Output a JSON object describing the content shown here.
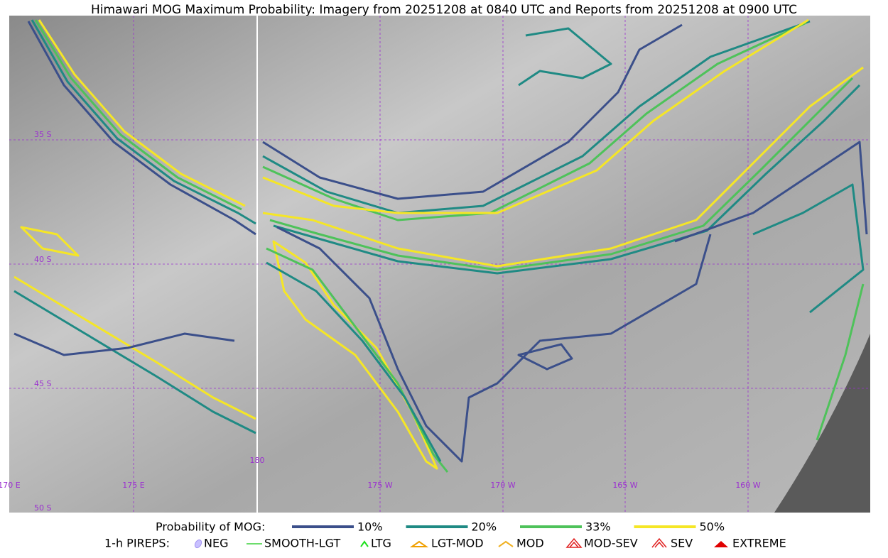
{
  "title": "Himawari MOG Maximum Probability: Imagery from 20251208 at 0840 UTC and Reports from 20251208 at 0900 UTC",
  "map": {
    "lat_labels": [
      "35 S",
      "40 S",
      "45 S",
      "50 S"
    ],
    "lon_labels": [
      "170 E",
      "175 E",
      "180",
      "175 W",
      "170 W",
      "165 W",
      "160 W"
    ]
  },
  "legend": {
    "probability_title": "Probability of MOG:",
    "probability": [
      {
        "label": "10%",
        "color": "#3b4f8a"
      },
      {
        "label": "20%",
        "color": "#1f8a84"
      },
      {
        "label": "33%",
        "color": "#4ec25a"
      },
      {
        "label": "50%",
        "color": "#f5e626"
      }
    ],
    "pireps_title": "1-h PIREPS:",
    "pireps": [
      "NEG",
      "SMOOTH-LGT",
      "LTG",
      "LGT-MOD",
      "MOD",
      "MOD-SEV",
      "SEV",
      "EXTREME"
    ]
  }
}
